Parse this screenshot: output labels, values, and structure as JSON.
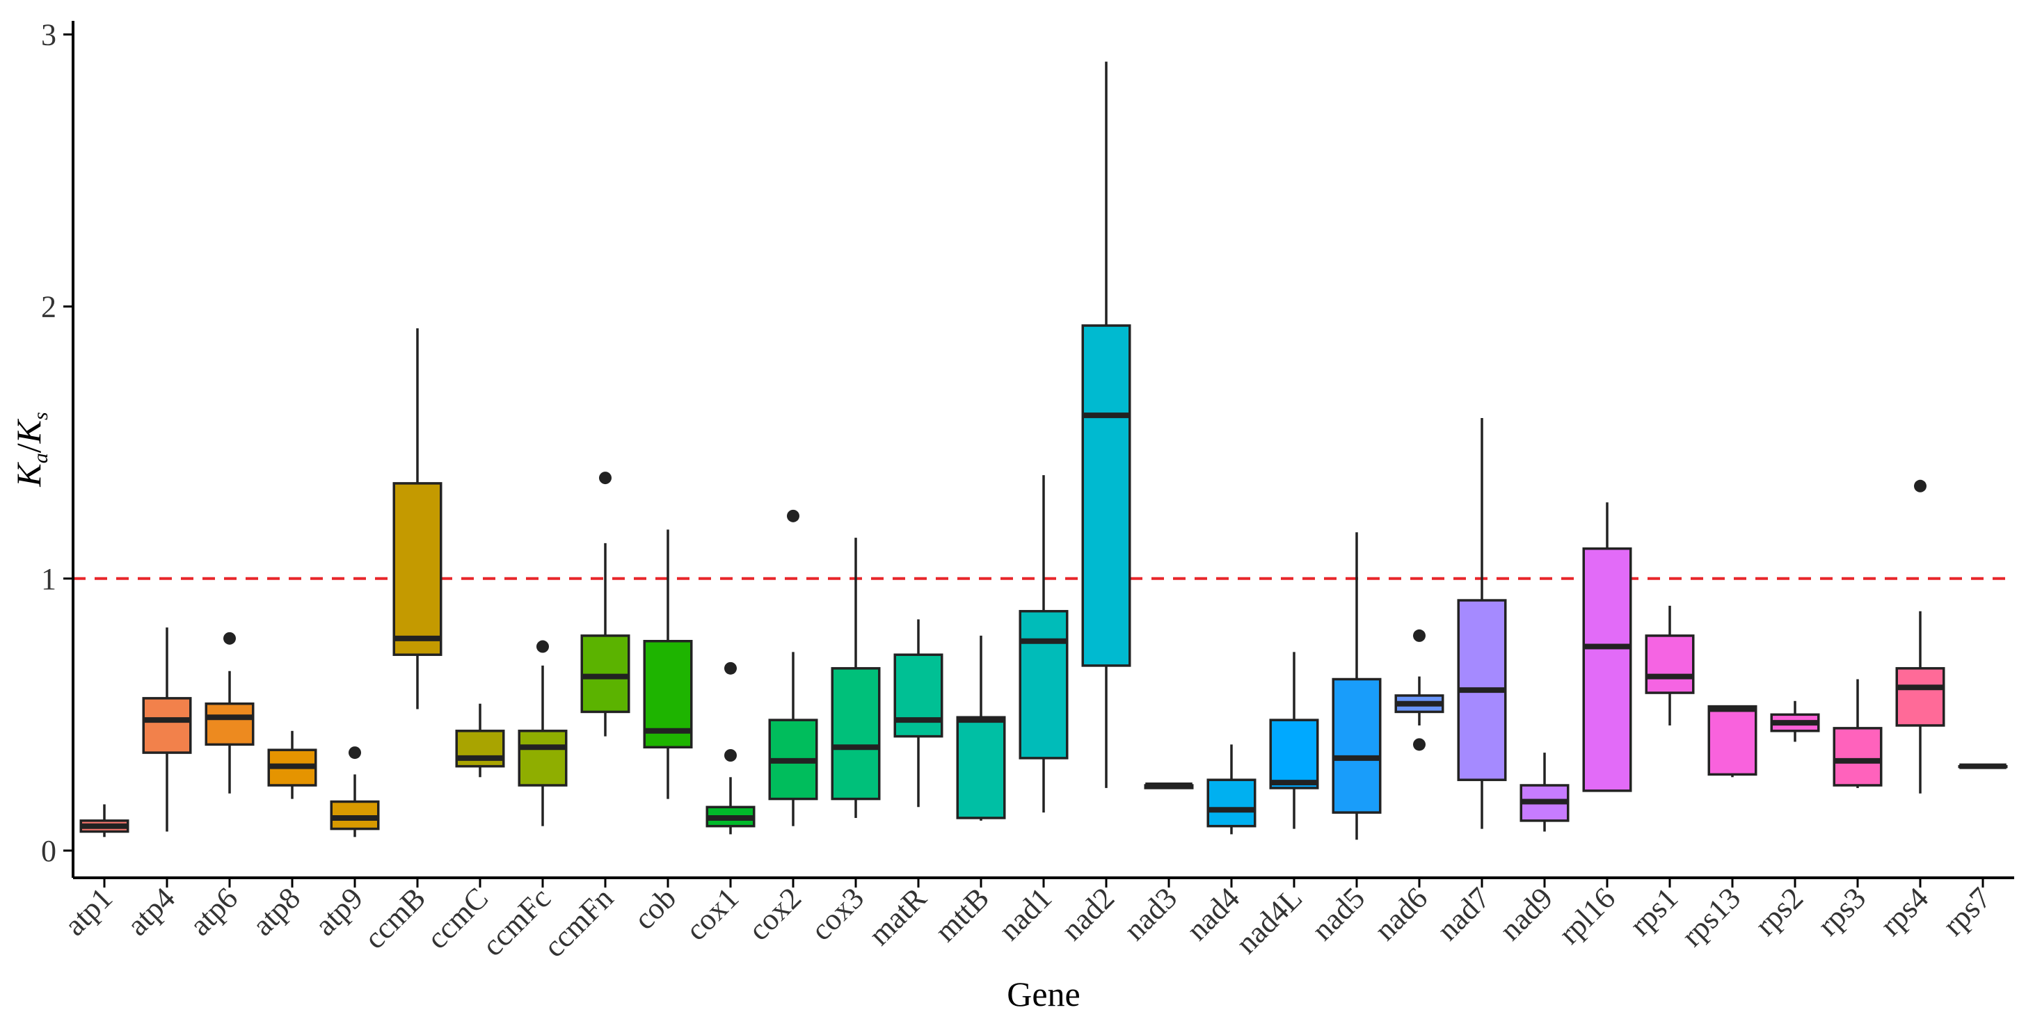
{
  "chart_data": {
    "type": "boxplot",
    "xlabel": "Gene",
    "ylabel_main": "K",
    "ylabel_sub_a": "a",
    "ylabel_sep": "/",
    "ylabel_sub_s": "s",
    "ylabel": "Ka/Ks",
    "ylim": [
      -0.1,
      3.05
    ],
    "yticks": [
      0,
      1,
      2,
      3
    ],
    "ytick_labels": [
      "0",
      "1",
      "2",
      "3"
    ],
    "reference_line": {
      "y": 1,
      "color": "#e8262a",
      "style": "dashed"
    },
    "grid": false,
    "categories": [
      "atp1",
      "atp4",
      "atp6",
      "atp8",
      "atp9",
      "ccmB",
      "ccmC",
      "ccmFc",
      "ccmFn",
      "cob",
      "cox1",
      "cox2",
      "cox3",
      "matR",
      "mttB",
      "nad1",
      "nad2",
      "nad3",
      "nad4",
      "nad4L",
      "nad5",
      "nad6",
      "nad7",
      "nad9",
      "rpl16",
      "rps1",
      "rps13",
      "rps2",
      "rps3",
      "rps4",
      "rps7"
    ],
    "boxes": [
      {
        "gene": "atp1",
        "whislo": 0.05,
        "q1": 0.07,
        "med": 0.09,
        "q3": 0.11,
        "whishi": 0.17,
        "fliers": [],
        "color": "#f8766d"
      },
      {
        "gene": "atp4",
        "whislo": 0.07,
        "q1": 0.36,
        "med": 0.48,
        "q3": 0.56,
        "whishi": 0.82,
        "fliers": [],
        "color": "#f2814b"
      },
      {
        "gene": "atp6",
        "whislo": 0.21,
        "q1": 0.39,
        "med": 0.49,
        "q3": 0.54,
        "whishi": 0.66,
        "fliers": [
          0.78
        ],
        "color": "#ed8a1f"
      },
      {
        "gene": "atp8",
        "whislo": 0.19,
        "q1": 0.24,
        "med": 0.31,
        "q3": 0.37,
        "whishi": 0.44,
        "fliers": [],
        "color": "#e59400"
      },
      {
        "gene": "atp9",
        "whislo": 0.05,
        "q1": 0.08,
        "med": 0.12,
        "q3": 0.18,
        "whishi": 0.28,
        "fliers": [
          0.36
        ],
        "color": "#d89a00"
      },
      {
        "gene": "ccmB",
        "whislo": 0.52,
        "q1": 0.72,
        "med": 0.78,
        "q3": 1.35,
        "whishi": 1.92,
        "fliers": [],
        "color": "#c49a00"
      },
      {
        "gene": "ccmC",
        "whislo": 0.27,
        "q1": 0.31,
        "med": 0.34,
        "q3": 0.44,
        "whishi": 0.54,
        "fliers": [],
        "color": "#a9a400"
      },
      {
        "gene": "ccmFc",
        "whislo": 0.09,
        "q1": 0.24,
        "med": 0.38,
        "q3": 0.44,
        "whishi": 0.68,
        "fliers": [
          0.75
        ],
        "color": "#8fae00"
      },
      {
        "gene": "ccmFn",
        "whislo": 0.42,
        "q1": 0.51,
        "med": 0.64,
        "q3": 0.79,
        "whishi": 1.13,
        "fliers": [
          1.37
        ],
        "color": "#5bb300"
      },
      {
        "gene": "cob",
        "whislo": 0.19,
        "q1": 0.38,
        "med": 0.44,
        "q3": 0.77,
        "whishi": 1.18,
        "fliers": [],
        "color": "#1eb400"
      },
      {
        "gene": "cox1",
        "whislo": 0.06,
        "q1": 0.09,
        "med": 0.12,
        "q3": 0.16,
        "whishi": 0.27,
        "fliers": [
          0.35,
          0.67
        ],
        "color": "#00ba2a"
      },
      {
        "gene": "cox2",
        "whislo": 0.09,
        "q1": 0.19,
        "med": 0.33,
        "q3": 0.48,
        "whishi": 0.73,
        "fliers": [
          1.23
        ],
        "color": "#00bd5c"
      },
      {
        "gene": "cox3",
        "whislo": 0.12,
        "q1": 0.19,
        "med": 0.38,
        "q3": 0.67,
        "whishi": 1.15,
        "fliers": [],
        "color": "#00c07a"
      },
      {
        "gene": "matR",
        "whislo": 0.16,
        "q1": 0.42,
        "med": 0.48,
        "q3": 0.72,
        "whishi": 0.85,
        "fliers": [],
        "color": "#00c094"
      },
      {
        "gene": "mttB",
        "whislo": 0.11,
        "q1": 0.12,
        "med": 0.48,
        "q3": 0.49,
        "whishi": 0.79,
        "fliers": [],
        "color": "#00bfa4"
      },
      {
        "gene": "nad1",
        "whislo": 0.14,
        "q1": 0.34,
        "med": 0.77,
        "q3": 0.88,
        "whishi": 1.38,
        "fliers": [],
        "color": "#00bcb9"
      },
      {
        "gene": "nad2",
        "whislo": 0.23,
        "q1": 0.68,
        "med": 1.6,
        "q3": 1.93,
        "whishi": 2.9,
        "fliers": [],
        "color": "#00bad0"
      },
      {
        "gene": "nad3",
        "whislo": 0.23,
        "q1": 0.23,
        "med": 0.24,
        "q3": 0.24,
        "whishi": 0.24,
        "fliers": [],
        "color": "#00b5e3"
      },
      {
        "gene": "nad4",
        "whislo": 0.06,
        "q1": 0.09,
        "med": 0.15,
        "q3": 0.26,
        "whishi": 0.39,
        "fliers": [],
        "color": "#00b0f0"
      },
      {
        "gene": "nad4L",
        "whislo": 0.08,
        "q1": 0.23,
        "med": 0.25,
        "q3": 0.48,
        "whishi": 0.73,
        "fliers": [],
        "color": "#00a9ff"
      },
      {
        "gene": "nad5",
        "whislo": 0.04,
        "q1": 0.14,
        "med": 0.34,
        "q3": 0.63,
        "whishi": 1.17,
        "fliers": [],
        "color": "#199dfa"
      },
      {
        "gene": "nad6",
        "whislo": 0.46,
        "q1": 0.51,
        "med": 0.54,
        "q3": 0.57,
        "whishi": 0.64,
        "fliers": [
          0.39,
          0.79
        ],
        "color": "#6995f8"
      },
      {
        "gene": "nad7",
        "whislo": 0.08,
        "q1": 0.26,
        "med": 0.59,
        "q3": 0.92,
        "whishi": 1.59,
        "fliers": [],
        "color": "#a58aff"
      },
      {
        "gene": "nad9",
        "whislo": 0.07,
        "q1": 0.11,
        "med": 0.18,
        "q3": 0.24,
        "whishi": 0.36,
        "fliers": [],
        "color": "#c77cff"
      },
      {
        "gene": "rpl16",
        "whislo": 0.22,
        "q1": 0.22,
        "med": 0.75,
        "q3": 1.11,
        "whishi": 1.28,
        "fliers": [],
        "color": "#e26bf8"
      },
      {
        "gene": "rps1",
        "whislo": 0.46,
        "q1": 0.58,
        "med": 0.64,
        "q3": 0.79,
        "whishi": 0.9,
        "fliers": [],
        "color": "#f564e3"
      },
      {
        "gene": "rps13",
        "whislo": 0.27,
        "q1": 0.28,
        "med": 0.52,
        "q3": 0.53,
        "whishi": 0.53,
        "fliers": [],
        "color": "#f962dd"
      },
      {
        "gene": "rps2",
        "whislo": 0.4,
        "q1": 0.44,
        "med": 0.47,
        "q3": 0.5,
        "whishi": 0.55,
        "fliers": [],
        "color": "#fb61d7"
      },
      {
        "gene": "rps3",
        "whislo": 0.23,
        "q1": 0.24,
        "med": 0.33,
        "q3": 0.45,
        "whishi": 0.63,
        "fliers": [],
        "color": "#ff62bc"
      },
      {
        "gene": "rps4",
        "whislo": 0.21,
        "q1": 0.46,
        "med": 0.6,
        "q3": 0.67,
        "whishi": 0.88,
        "fliers": [
          1.34
        ],
        "color": "#ff6a98"
      },
      {
        "gene": "rps7",
        "whislo": 0.31,
        "q1": 0.31,
        "med": 0.31,
        "q3": 0.31,
        "whishi": 0.31,
        "fliers": [],
        "color": "#ff6c91"
      }
    ]
  }
}
